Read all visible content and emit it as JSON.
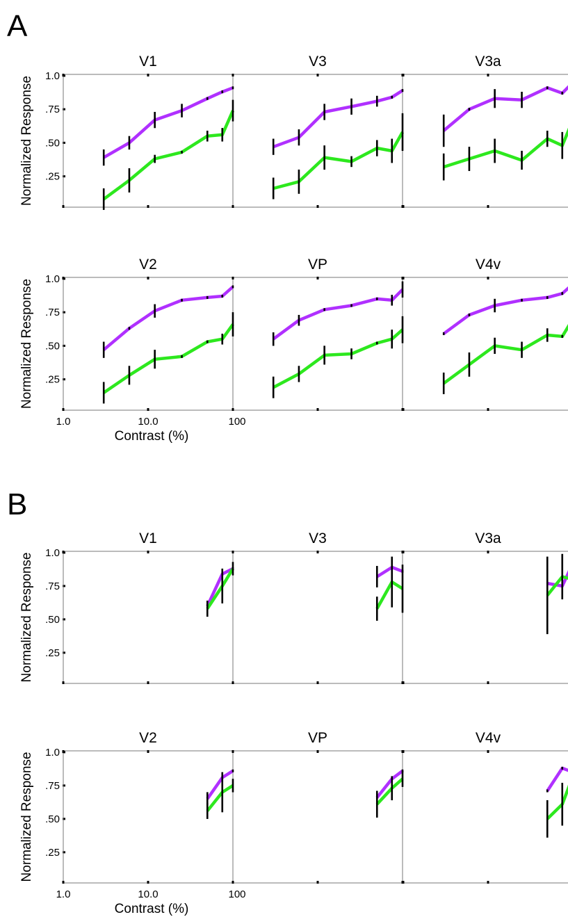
{
  "figure": {
    "axis_label_y": "Normalized Response",
    "axis_label_x": "Contrast (%)",
    "x_tick_labels": [
      "1.0",
      "10.0",
      "100"
    ],
    "y_tick_labels": [
      "1.0",
      ".75",
      ".50",
      ".25"
    ],
    "colors": {
      "purple": "#b030ff",
      "green": "#2de81e",
      "error_bar": "#000000",
      "frame": "#777777"
    }
  },
  "chart_data": [
    {
      "panel": "A",
      "type": "line",
      "y_ticks": [
        1.0,
        0.75,
        0.5,
        0.25
      ],
      "ylim": [
        0.02,
        1.01
      ],
      "xlim": [
        1.0,
        100
      ],
      "x_scale": "log",
      "rows": [
        {
          "subplots": [
            {
              "title": "V1",
              "x": [
                3,
                6,
                12,
                25,
                50,
                75,
                100
              ],
              "series": [
                {
                  "color": "purple",
                  "values": [
                    0.39,
                    0.5,
                    0.67,
                    0.74,
                    0.83,
                    0.88,
                    0.91
                  ],
                  "errors": [
                    0.05,
                    0.04,
                    0.05,
                    0.04,
                    0.0,
                    0.0,
                    0.0
                  ]
                },
                {
                  "color": "green",
                  "values": [
                    0.08,
                    0.22,
                    0.38,
                    0.43,
                    0.55,
                    0.56,
                    0.74
                  ],
                  "errors": [
                    0.07,
                    0.08,
                    0.02,
                    0.0,
                    0.03,
                    0.04,
                    0.07
                  ]
                }
              ]
            },
            {
              "title": "V3",
              "x": [
                3,
                6,
                12,
                25,
                50,
                75,
                100
              ],
              "series": [
                {
                  "color": "purple",
                  "values": [
                    0.47,
                    0.54,
                    0.73,
                    0.77,
                    0.81,
                    0.84,
                    0.89
                  ],
                  "errors": [
                    0.05,
                    0.05,
                    0.05,
                    0.05,
                    0.03,
                    0.0,
                    0.0
                  ]
                },
                {
                  "color": "green",
                  "values": [
                    0.16,
                    0.21,
                    0.39,
                    0.36,
                    0.46,
                    0.44,
                    0.58
                  ],
                  "errors": [
                    0.07,
                    0.08,
                    0.08,
                    0.03,
                    0.05,
                    0.08,
                    0.13
                  ]
                }
              ]
            },
            {
              "title": "V3a",
              "x": [
                3,
                6,
                12,
                25,
                50,
                75,
                100
              ],
              "series": [
                {
                  "color": "purple",
                  "values": [
                    0.59,
                    0.75,
                    0.83,
                    0.82,
                    0.91,
                    0.87,
                    0.95
                  ],
                  "errors": [
                    0.11,
                    0.0,
                    0.06,
                    0.05,
                    0.0,
                    0.0,
                    0.0
                  ]
                },
                {
                  "color": "green",
                  "values": [
                    0.32,
                    0.38,
                    0.44,
                    0.37,
                    0.53,
                    0.48,
                    0.67
                  ],
                  "errors": [
                    0.09,
                    0.08,
                    0.08,
                    0.06,
                    0.05,
                    0.09,
                    0.0
                  ]
                }
              ]
            }
          ]
        },
        {
          "subplots": [
            {
              "title": "V2",
              "x": [
                3,
                6,
                12,
                25,
                50,
                75,
                100
              ],
              "series": [
                {
                  "color": "purple",
                  "values": [
                    0.47,
                    0.63,
                    0.76,
                    0.84,
                    0.86,
                    0.87,
                    0.94
                  ],
                  "errors": [
                    0.05,
                    0.0,
                    0.04,
                    0.0,
                    0.0,
                    0.0,
                    0.0
                  ]
                },
                {
                  "color": "green",
                  "values": [
                    0.15,
                    0.28,
                    0.4,
                    0.42,
                    0.53,
                    0.55,
                    0.66
                  ],
                  "errors": [
                    0.07,
                    0.06,
                    0.06,
                    0.0,
                    0.0,
                    0.03,
                    0.08
                  ]
                }
              ]
            },
            {
              "title": "VP",
              "x": [
                3,
                6,
                12,
                25,
                50,
                75,
                100
              ],
              "series": [
                {
                  "color": "purple",
                  "values": [
                    0.55,
                    0.69,
                    0.77,
                    0.8,
                    0.85,
                    0.84,
                    0.92
                  ],
                  "errors": [
                    0.04,
                    0.03,
                    0.0,
                    0.0,
                    0.0,
                    0.03,
                    0.05
                  ]
                },
                {
                  "color": "green",
                  "values": [
                    0.19,
                    0.29,
                    0.43,
                    0.44,
                    0.52,
                    0.55,
                    0.62
                  ],
                  "errors": [
                    0.07,
                    0.05,
                    0.06,
                    0.03,
                    0.0,
                    0.06,
                    0.09
                  ]
                }
              ]
            },
            {
              "title": "V4v",
              "x": [
                3,
                6,
                12,
                25,
                50,
                75,
                100
              ],
              "series": [
                {
                  "color": "purple",
                  "values": [
                    0.59,
                    0.73,
                    0.8,
                    0.84,
                    0.86,
                    0.89,
                    0.96
                  ],
                  "errors": [
                    0.0,
                    0.0,
                    0.04,
                    0.0,
                    0.0,
                    0.0,
                    0.0
                  ]
                },
                {
                  "color": "green",
                  "values": [
                    0.22,
                    0.36,
                    0.5,
                    0.47,
                    0.58,
                    0.57,
                    0.7
                  ],
                  "errors": [
                    0.07,
                    0.08,
                    0.05,
                    0.05,
                    0.04,
                    0.0,
                    0.0
                  ]
                }
              ]
            }
          ]
        }
      ]
    },
    {
      "panel": "B",
      "type": "line",
      "y_ticks": [
        1.0,
        0.75,
        0.5,
        0.25
      ],
      "ylim": [
        0.02,
        1.01
      ],
      "xlim": [
        1.0,
        100
      ],
      "x_scale": "log",
      "rows": [
        {
          "subplots": [
            {
              "title": "V1",
              "x": [
                50,
                75,
                100
              ],
              "series": [
                {
                  "color": "purple",
                  "values": [
                    0.6,
                    0.84,
                    0.88
                  ],
                  "errors": [
                    0.0,
                    0.0,
                    0.0
                  ]
                },
                {
                  "color": "green",
                  "values": [
                    0.58,
                    0.75,
                    0.88
                  ],
                  "errors": [
                    0.05,
                    0.12,
                    0.04
                  ]
                }
              ]
            },
            {
              "title": "V3",
              "x": [
                50,
                75,
                100
              ],
              "series": [
                {
                  "color": "purple",
                  "values": [
                    0.82,
                    0.89,
                    0.86
                  ],
                  "errors": [
                    0.07,
                    0.0,
                    0.0
                  ]
                },
                {
                  "color": "green",
                  "values": [
                    0.58,
                    0.78,
                    0.73
                  ],
                  "errors": [
                    0.08,
                    0.18,
                    0.17
                  ]
                }
              ]
            },
            {
              "title": "V3a",
              "x": [
                50,
                75,
                100
              ],
              "series": [
                {
                  "color": "purple",
                  "values": [
                    0.77,
                    0.75,
                    0.92
                  ],
                  "errors": [
                    0.0,
                    0.0,
                    0.0
                  ]
                },
                {
                  "color": "green",
                  "values": [
                    0.68,
                    0.82,
                    0.8
                  ],
                  "errors": [
                    0.28,
                    0.16,
                    0.0
                  ]
                }
              ]
            }
          ]
        },
        {
          "subplots": [
            {
              "title": "V2",
              "x": [
                50,
                75,
                100
              ],
              "series": [
                {
                  "color": "purple",
                  "values": [
                    0.65,
                    0.81,
                    0.86
                  ],
                  "errors": [
                    0.04,
                    0.0,
                    0.0
                  ]
                },
                {
                  "color": "green",
                  "values": [
                    0.56,
                    0.7,
                    0.75
                  ],
                  "errors": [
                    0.05,
                    0.14,
                    0.04
                  ]
                }
              ]
            },
            {
              "title": "VP",
              "x": [
                50,
                75,
                100
              ],
              "series": [
                {
                  "color": "purple",
                  "values": [
                    0.66,
                    0.8,
                    0.86
                  ],
                  "errors": [
                    0.0,
                    0.0,
                    0.0
                  ]
                },
                {
                  "color": "green",
                  "values": [
                    0.61,
                    0.73,
                    0.8
                  ],
                  "errors": [
                    0.09,
                    0.08,
                    0.05
                  ]
                }
              ]
            },
            {
              "title": "V4v",
              "x": [
                50,
                75,
                100
              ],
              "series": [
                {
                  "color": "purple",
                  "values": [
                    0.71,
                    0.88,
                    0.85
                  ],
                  "errors": [
                    0.0,
                    0.0,
                    0.0
                  ]
                },
                {
                  "color": "green",
                  "values": [
                    0.5,
                    0.61,
                    0.82
                  ],
                  "errors": [
                    0.13,
                    0.15,
                    0.0
                  ]
                }
              ]
            }
          ]
        }
      ]
    }
  ]
}
